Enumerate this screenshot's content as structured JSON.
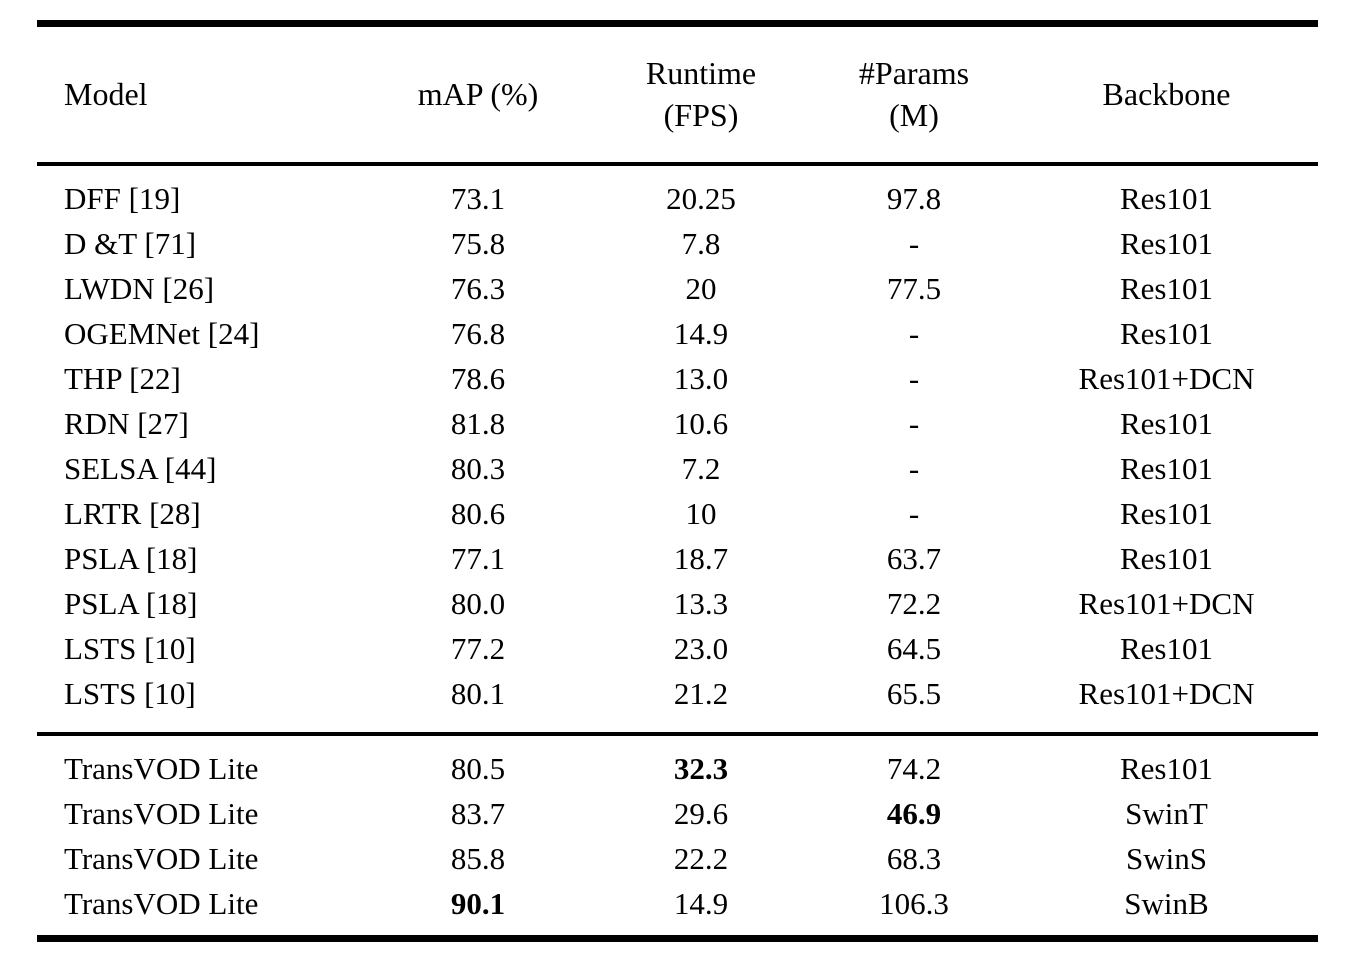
{
  "colors": {
    "background": "#ffffff",
    "text": "#000000",
    "rule": "#000000"
  },
  "table": {
    "headers": [
      {
        "lines": [
          "Model"
        ]
      },
      {
        "lines": [
          "mAP (%)"
        ]
      },
      {
        "lines": [
          "Runtime",
          "(FPS)"
        ]
      },
      {
        "lines": [
          "#Params",
          "(M)"
        ]
      },
      {
        "lines": [
          "Backbone"
        ]
      }
    ],
    "groups": [
      {
        "rows": [
          {
            "cells": [
              {
                "text": "DFF [19]"
              },
              {
                "text": "73.1"
              },
              {
                "text": "20.25"
              },
              {
                "text": "97.8"
              },
              {
                "text": "Res101"
              }
            ]
          },
          {
            "cells": [
              {
                "text": "D &T [71]"
              },
              {
                "text": "75.8"
              },
              {
                "text": "7.8"
              },
              {
                "text": "-"
              },
              {
                "text": "Res101"
              }
            ]
          },
          {
            "cells": [
              {
                "text": "LWDN [26]"
              },
              {
                "text": "76.3"
              },
              {
                "text": "20"
              },
              {
                "text": "77.5"
              },
              {
                "text": "Res101"
              }
            ]
          },
          {
            "cells": [
              {
                "text": "OGEMNet [24]"
              },
              {
                "text": "76.8"
              },
              {
                "text": "14.9"
              },
              {
                "text": "-"
              },
              {
                "text": "Res101"
              }
            ]
          },
          {
            "cells": [
              {
                "text": "THP [22]"
              },
              {
                "text": "78.6"
              },
              {
                "text": "13.0"
              },
              {
                "text": "-"
              },
              {
                "text": "Res101+DCN"
              }
            ]
          },
          {
            "cells": [
              {
                "text": "RDN [27]"
              },
              {
                "text": "81.8"
              },
              {
                "text": "10.6"
              },
              {
                "text": "-"
              },
              {
                "text": "Res101"
              }
            ]
          },
          {
            "cells": [
              {
                "text": "SELSA [44]"
              },
              {
                "text": "80.3"
              },
              {
                "text": "7.2"
              },
              {
                "text": "-"
              },
              {
                "text": "Res101"
              }
            ]
          },
          {
            "cells": [
              {
                "text": "LRTR [28]"
              },
              {
                "text": "80.6"
              },
              {
                "text": "10"
              },
              {
                "text": "-"
              },
              {
                "text": "Res101"
              }
            ]
          },
          {
            "cells": [
              {
                "text": "PSLA [18]"
              },
              {
                "text": "77.1"
              },
              {
                "text": "18.7"
              },
              {
                "text": "63.7"
              },
              {
                "text": "Res101"
              }
            ]
          },
          {
            "cells": [
              {
                "text": "PSLA [18]"
              },
              {
                "text": "80.0"
              },
              {
                "text": "13.3"
              },
              {
                "text": "72.2"
              },
              {
                "text": "Res101+DCN"
              }
            ]
          },
          {
            "cells": [
              {
                "text": "LSTS [10]"
              },
              {
                "text": "77.2"
              },
              {
                "text": "23.0"
              },
              {
                "text": "64.5"
              },
              {
                "text": "Res101"
              }
            ]
          },
          {
            "cells": [
              {
                "text": "LSTS [10]"
              },
              {
                "text": "80.1"
              },
              {
                "text": "21.2"
              },
              {
                "text": "65.5"
              },
              {
                "text": "Res101+DCN"
              }
            ]
          }
        ]
      },
      {
        "rows": [
          {
            "cells": [
              {
                "text": "TransVOD Lite"
              },
              {
                "text": "80.5"
              },
              {
                "text": "32.3",
                "bold": true
              },
              {
                "text": "74.2"
              },
              {
                "text": "Res101"
              }
            ]
          },
          {
            "cells": [
              {
                "text": "TransVOD Lite"
              },
              {
                "text": "83.7"
              },
              {
                "text": "29.6"
              },
              {
                "text": "46.9",
                "bold": true
              },
              {
                "text": "SwinT"
              }
            ]
          },
          {
            "cells": [
              {
                "text": "TransVOD Lite"
              },
              {
                "text": "85.8"
              },
              {
                "text": "22.2"
              },
              {
                "text": "68.3"
              },
              {
                "text": "SwinS"
              }
            ]
          },
          {
            "cells": [
              {
                "text": "TransVOD Lite"
              },
              {
                "text": "90.1",
                "bold": true
              },
              {
                "text": "14.9"
              },
              {
                "text": "106.3"
              },
              {
                "text": "SwinB"
              }
            ]
          }
        ]
      }
    ]
  }
}
